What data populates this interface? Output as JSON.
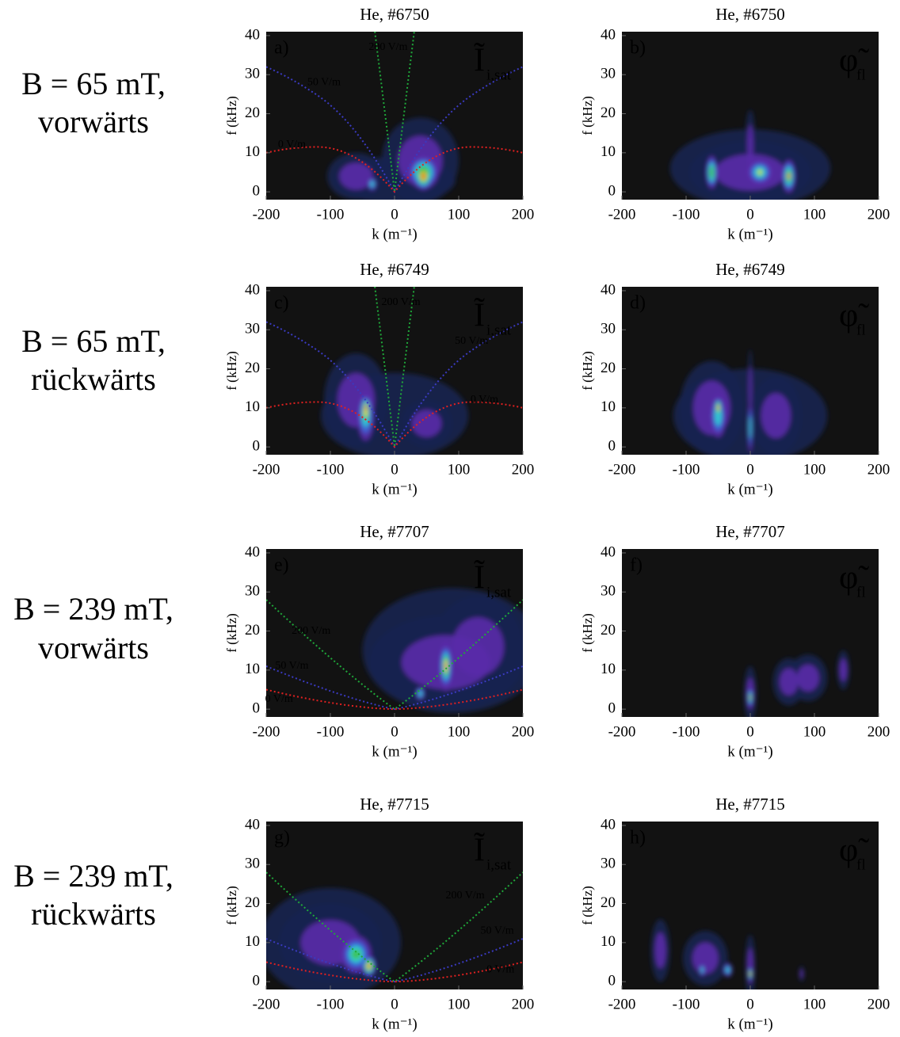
{
  "rows": [
    {
      "label_lines": [
        "B = 65 mT,",
        "vorwärts"
      ]
    },
    {
      "label_lines": [
        "B = 65 mT,",
        "rückwärts"
      ]
    },
    {
      "label_lines": [
        "B = 239 mT,",
        "vorwärts"
      ]
    },
    {
      "label_lines": [
        "B = 239 mT,",
        "rückwärts"
      ]
    }
  ],
  "chart_data": [
    {
      "type": "heatmap",
      "title": "He, #6750",
      "panel": "a)",
      "quantity": "Ĩ",
      "quantity_sub": "i,sat",
      "xlabel": "k (m⁻¹)",
      "ylabel": "f (kHz)",
      "xlim": [
        -200,
        200
      ],
      "ylim": [
        -2,
        41
      ],
      "xticks": [
        -200,
        -100,
        0,
        100,
        200
      ],
      "yticks": [
        0,
        10,
        20,
        30,
        40
      ],
      "annotations": [
        {
          "text": "200 V/m",
          "color": "#1fa83a"
        },
        {
          "text": "50 V/m",
          "color": "#3a3ac0"
        },
        {
          "text": "0 V/m",
          "color": "#e02020"
        }
      ]
    },
    {
      "type": "heatmap",
      "title": "He, #6750",
      "panel": "b)",
      "quantity": "φ̃",
      "quantity_sub": "fl",
      "xlabel": "k (m⁻¹)",
      "ylabel": "f (kHz)",
      "xlim": [
        -200,
        200
      ],
      "ylim": [
        -2,
        41
      ],
      "xticks": [
        -200,
        -100,
        0,
        100,
        200
      ],
      "yticks": [
        0,
        10,
        20,
        30,
        40
      ],
      "annotations": []
    },
    {
      "type": "heatmap",
      "title": "He, #6749",
      "panel": "c)",
      "quantity": "Ĩ",
      "quantity_sub": "i,sat",
      "xlabel": "k (m⁻¹)",
      "ylabel": "f (kHz)",
      "xlim": [
        -200,
        200
      ],
      "ylim": [
        -2,
        41
      ],
      "xticks": [
        -200,
        -100,
        0,
        100,
        200
      ],
      "yticks": [
        0,
        10,
        20,
        30,
        40
      ],
      "annotations": [
        {
          "text": "200 V/m",
          "color": "#1fa83a"
        },
        {
          "text": "50 V/m",
          "color": "#3a3ac0"
        },
        {
          "text": "0 V/m",
          "color": "#e02020"
        }
      ]
    },
    {
      "type": "heatmap",
      "title": "He, #6749",
      "panel": "d)",
      "quantity": "φ̃",
      "quantity_sub": "fl",
      "xlabel": "k (m⁻¹)",
      "ylabel": "f (kHz)",
      "xlim": [
        -200,
        200
      ],
      "ylim": [
        -2,
        41
      ],
      "xticks": [
        -200,
        -100,
        0,
        100,
        200
      ],
      "yticks": [
        0,
        10,
        20,
        30,
        40
      ],
      "annotations": []
    },
    {
      "type": "heatmap",
      "title": "He, #7707",
      "panel": "e)",
      "quantity": "Ĩ",
      "quantity_sub": "i,sat",
      "xlabel": "k (m⁻¹)",
      "ylabel": "f (kHz)",
      "xlim": [
        -200,
        200
      ],
      "ylim": [
        -2,
        41
      ],
      "xticks": [
        -200,
        -100,
        0,
        100,
        200
      ],
      "yticks": [
        0,
        10,
        20,
        30,
        40
      ],
      "annotations": [
        {
          "text": "200 V/m",
          "color": "#1fa83a"
        },
        {
          "text": "50 V/m",
          "color": "#3a3ac0"
        },
        {
          "text": "0 V/m",
          "color": "#e02020"
        }
      ]
    },
    {
      "type": "heatmap",
      "title": "He, #7707",
      "panel": "f)",
      "quantity": "φ̃",
      "quantity_sub": "fl",
      "xlabel": "k (m⁻¹)",
      "ylabel": "f (kHz)",
      "xlim": [
        -200,
        200
      ],
      "ylim": [
        -2,
        41
      ],
      "xticks": [
        -200,
        -100,
        0,
        100,
        200
      ],
      "yticks": [
        0,
        10,
        20,
        30,
        40
      ],
      "annotations": []
    },
    {
      "type": "heatmap",
      "title": "He, #7715",
      "panel": "g)",
      "quantity": "Ĩ",
      "quantity_sub": "i,sat",
      "xlabel": "k (m⁻¹)",
      "ylabel": "f (kHz)",
      "xlim": [
        -200,
        200
      ],
      "ylim": [
        -2,
        41
      ],
      "xticks": [
        -200,
        -100,
        0,
        100,
        200
      ],
      "yticks": [
        0,
        10,
        20,
        30,
        40
      ],
      "annotations": [
        {
          "text": "200 V/m",
          "color": "#1fa83a"
        },
        {
          "text": "50 V/m",
          "color": "#3a3ac0"
        },
        {
          "text": "0 V/m",
          "color": "#e02020"
        }
      ]
    },
    {
      "type": "heatmap",
      "title": "He, #7715",
      "panel": "h)",
      "quantity": "φ̃",
      "quantity_sub": "fl",
      "xlabel": "k (m⁻¹)",
      "ylabel": "f (kHz)",
      "xlim": [
        -200,
        200
      ],
      "ylim": [
        -2,
        41
      ],
      "xticks": [
        -200,
        -100,
        0,
        100,
        200
      ],
      "yticks": [
        0,
        10,
        20,
        30,
        40
      ],
      "annotations": []
    }
  ]
}
